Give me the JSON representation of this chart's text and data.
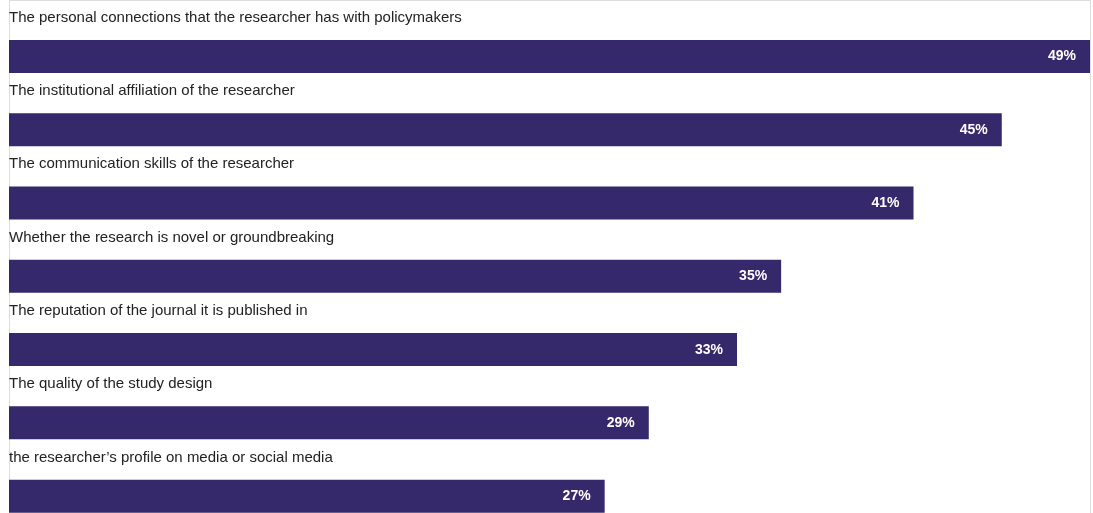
{
  "chart_data": {
    "type": "bar",
    "orientation": "horizontal",
    "categories": [
      "The personal connections that the researcher has with policymakers",
      "The institutional affiliation of the researcher",
      "The communication skills of the researcher",
      "Whether the research is novel or groundbreaking",
      "The reputation of the journal it is published in",
      "The quality of the study design",
      "the researcher’s profile on media or social media"
    ],
    "values": [
      49,
      45,
      41,
      35,
      33,
      29,
      27
    ],
    "value_labels": [
      "49%",
      "45%",
      "41%",
      "35%",
      "33%",
      "29%",
      "27%"
    ],
    "color": "#35286b"
  }
}
